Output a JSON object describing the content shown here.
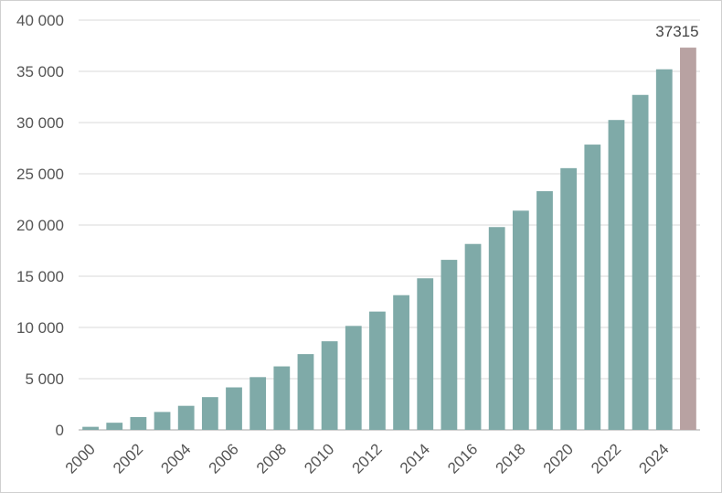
{
  "chart_data": {
    "type": "bar",
    "title": "",
    "xlabel": "",
    "ylabel": "",
    "ylim": [
      0,
      40000
    ],
    "yticks": [
      0,
      5000,
      10000,
      15000,
      20000,
      25000,
      30000,
      35000,
      40000
    ],
    "ytick_labels": [
      "0",
      "5 000",
      "10 000",
      "15 000",
      "20 000",
      "25 000",
      "30 000",
      "35 000",
      "40 000"
    ],
    "categories": [
      "2000",
      "2001",
      "2002",
      "2003",
      "2004",
      "2005",
      "2006",
      "2007",
      "2008",
      "2009",
      "2010",
      "2011",
      "2012",
      "2013",
      "2014",
      "2015",
      "2016",
      "2017",
      "2018",
      "2019",
      "2020",
      "2021",
      "2022",
      "2023",
      "2024",
      "2025"
    ],
    "xtick_labels": [
      "2000",
      "2002",
      "2004",
      "2006",
      "2008",
      "2010",
      "2012",
      "2014",
      "2016",
      "2018",
      "2020",
      "2022",
      "2024"
    ],
    "values": [
      300,
      700,
      1250,
      1750,
      2350,
      3200,
      4150,
      5150,
      6200,
      7400,
      8650,
      10150,
      11550,
      13150,
      14800,
      16600,
      18150,
      19800,
      21400,
      23300,
      25550,
      27850,
      30250,
      32700,
      35200,
      37315
    ],
    "highlight_index": 25,
    "highlight_label": "37315",
    "grid": true,
    "colors": {
      "bar": "#7faaa8",
      "highlight": "#b8a2a2",
      "grid": "#d9d9d9",
      "axis": "#a6a6a6"
    }
  }
}
